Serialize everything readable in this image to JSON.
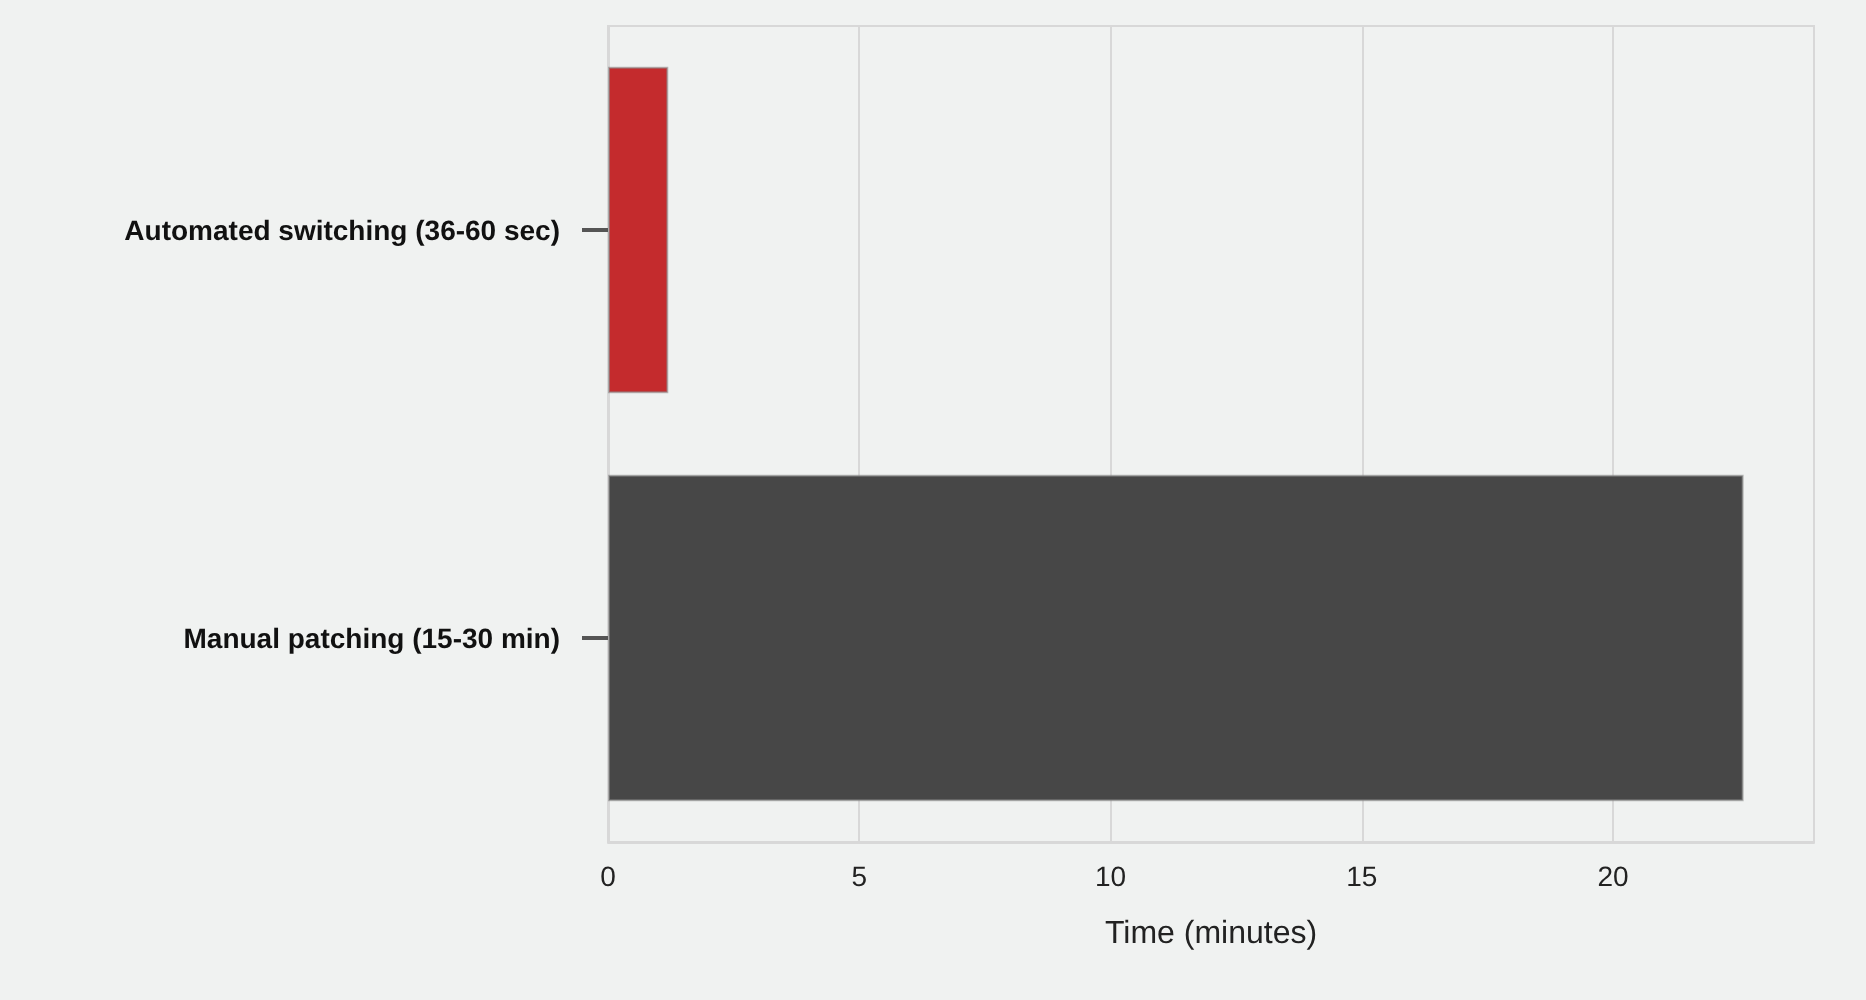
{
  "chart_data": {
    "type": "bar",
    "orientation": "horizontal",
    "categories": [
      "Automated switching (36-60 sec)",
      "Manual patching (15-30 min)"
    ],
    "values": [
      1.2,
      22.6
    ],
    "colors": [
      "#c42b2d",
      "#474747"
    ],
    "xlabel": "Time (minutes)",
    "xlim": [
      0,
      24
    ],
    "xticks": [
      0,
      5,
      10,
      15,
      20
    ],
    "grid": "x"
  }
}
